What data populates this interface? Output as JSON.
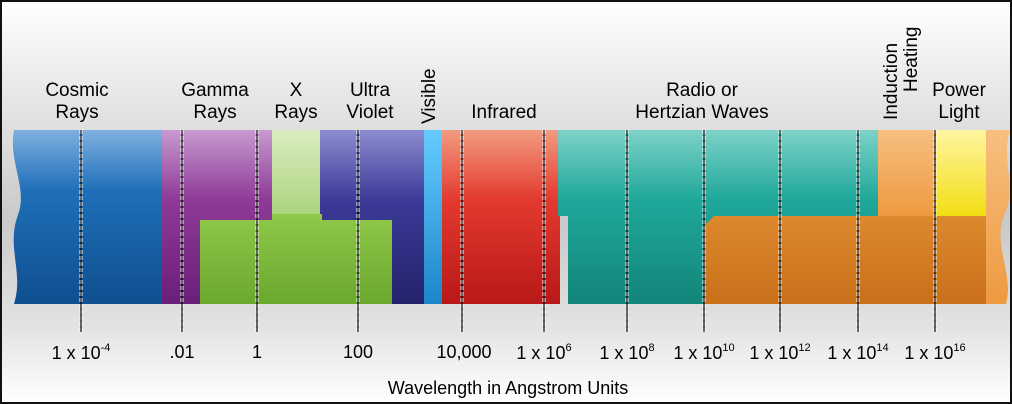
{
  "bands": {
    "cosmic_line1": "Cosmic",
    "cosmic_line2": "Rays",
    "gamma_line1": "Gamma",
    "gamma_line2": "Rays",
    "xray_line1": "X",
    "xray_line2": "Rays",
    "uv_line1": "Ultra",
    "uv_line2": "Violet",
    "visible": "Visible",
    "infrared": "Infrared",
    "radio_line1": "Radio or",
    "radio_line2": "Hertzian Waves",
    "induction_line1": "Induction",
    "induction_line2": "Heating",
    "power_line1": "Power",
    "power_line2": "Light"
  },
  "ticks": [
    {
      "base": "1 x 10",
      "exp": "-4"
    },
    {
      "base": ".01",
      "exp": ""
    },
    {
      "base": "1",
      "exp": ""
    },
    {
      "base": "100",
      "exp": ""
    },
    {
      "base": "10,000",
      "exp": ""
    },
    {
      "base": "1 x 10",
      "exp": "6"
    },
    {
      "base": "1 x 10",
      "exp": "8"
    },
    {
      "base": "1 x 10",
      "exp": "10"
    },
    {
      "base": "1 x 10",
      "exp": "12"
    },
    {
      "base": "1 x 10",
      "exp": "14"
    },
    {
      "base": "1 x 10",
      "exp": "16"
    }
  ],
  "caption": "Wavelength in Angstrom Units",
  "colors": {
    "cosmic": "#1f6fb8",
    "gamma": "#8e3a96",
    "xray": "#b7d98a",
    "green": "#7fbf3b",
    "uv": "#3b3b98",
    "visible": "#2aa7e6",
    "infrared": "#e33a2f",
    "radio": "#1fa89a",
    "orange": "#e38b22",
    "induction": "#f2a24a",
    "power": "#f4e21a"
  }
}
